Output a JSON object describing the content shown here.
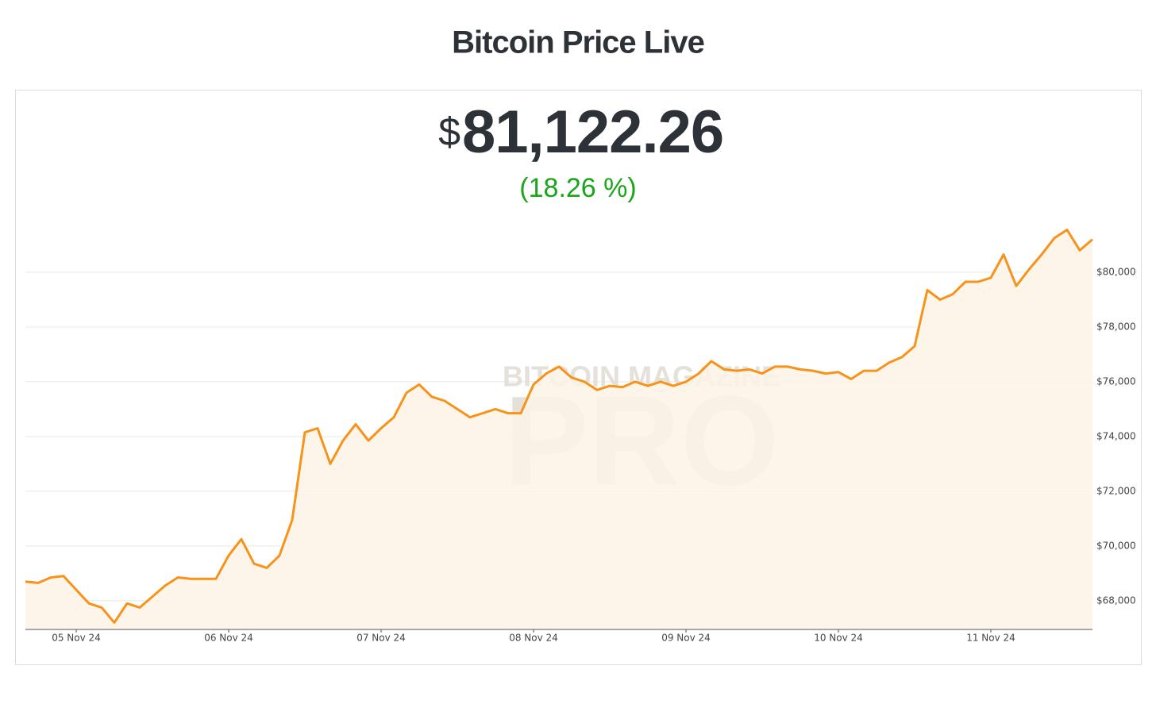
{
  "chart_data": {
    "type": "line",
    "title": "Bitcoin Price Live",
    "price_symbol": "$",
    "price": "81,122.26",
    "change": "(18.26 %)",
    "watermark": [
      "BITCOIN MAGAZINE",
      "PRO"
    ],
    "color": "#f7931a",
    "fill": "#fdf3e6",
    "grid": true,
    "x": [
      0,
      2,
      4,
      6,
      8,
      10,
      12,
      14,
      16,
      18,
      20,
      22,
      24,
      26,
      28,
      30,
      32,
      34,
      36,
      38,
      40,
      42,
      44,
      46,
      48,
      50,
      52,
      54,
      56,
      58,
      60,
      62,
      64,
      66,
      68,
      70,
      72,
      74,
      76,
      78,
      80,
      82,
      84,
      86,
      88,
      90,
      92,
      94,
      96,
      98,
      100,
      102,
      104,
      106,
      108,
      110,
      112,
      114,
      116,
      118,
      120,
      122,
      124,
      126,
      128,
      130,
      132,
      134,
      136,
      138,
      140,
      142,
      144,
      146,
      148,
      150,
      152,
      154,
      156,
      158,
      160,
      162,
      164,
      166,
      168
    ],
    "values": [
      68700,
      68650,
      68850,
      68900,
      68400,
      67900,
      67750,
      67200,
      67900,
      67750,
      68150,
      68550,
      68850,
      68800,
      68800,
      68800,
      69650,
      70250,
      69350,
      69200,
      69650,
      70950,
      74150,
      74300,
      73000,
      73850,
      74450,
      73850,
      74300,
      74700,
      75600,
      75900,
      75450,
      75300,
      75000,
      74700,
      74850,
      75000,
      74850,
      74850,
      75900,
      76300,
      76550,
      76150,
      76000,
      75700,
      75850,
      75800,
      76000,
      75850,
      76000,
      75850,
      76000,
      76300,
      76750,
      76450,
      76400,
      76450,
      76300,
      76550,
      76550,
      76450,
      76400,
      76300,
      76350,
      76100,
      76400,
      76400,
      76700,
      76900,
      77300,
      79350,
      79000,
      79200,
      79650,
      79650,
      79800,
      80650,
      79500,
      80100,
      80650,
      81250,
      81550,
      80800,
      81200
    ],
    "xlim": [
      0,
      168
    ],
    "xticks": [
      {
        "value": 8,
        "label": "05 Nov 24"
      },
      {
        "value": 32,
        "label": "06 Nov 24"
      },
      {
        "value": 56,
        "label": "07 Nov 24"
      },
      {
        "value": 80,
        "label": "08 Nov 24"
      },
      {
        "value": 104,
        "label": "09 Nov 24"
      },
      {
        "value": 128,
        "label": "10 Nov 24"
      },
      {
        "value": 152,
        "label": "11 Nov 24"
      }
    ],
    "ylim": [
      66950,
      82000
    ],
    "yticks": [
      {
        "value": 68000,
        "label": "$68,000"
      },
      {
        "value": 70000,
        "label": "$70,000"
      },
      {
        "value": 72000,
        "label": "$72,000"
      },
      {
        "value": 74000,
        "label": "$74,000"
      },
      {
        "value": 76000,
        "label": "$76,000"
      },
      {
        "value": 78000,
        "label": "$78,000"
      },
      {
        "value": 80000,
        "label": "$80,000"
      }
    ]
  }
}
